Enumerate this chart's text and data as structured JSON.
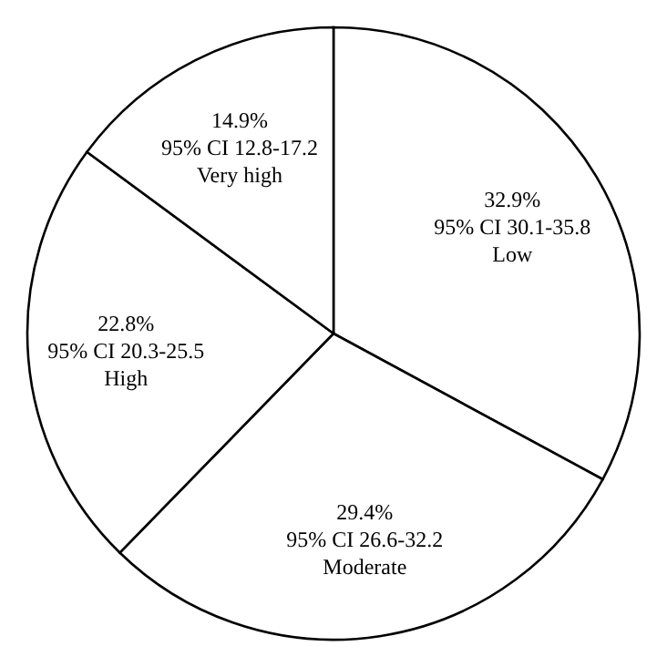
{
  "chart_data": {
    "type": "pie",
    "categories": [
      "Low",
      "Moderate",
      "High",
      "Very high"
    ],
    "values": [
      32.9,
      29.4,
      22.8,
      14.9
    ],
    "colors": [
      "#ffffff",
      "#ffffff",
      "#ffffff",
      "#ffffff"
    ],
    "value_labels": [
      "32.9%",
      "29.4%",
      "22.8%",
      "14.9%"
    ],
    "annotations": [
      "95% CI 30.1-35.8",
      "95% CI 26.6-32.2",
      "95% CI 20.3-25.5",
      "95% CI 12.8-17.2"
    ],
    "legend": false
  }
}
